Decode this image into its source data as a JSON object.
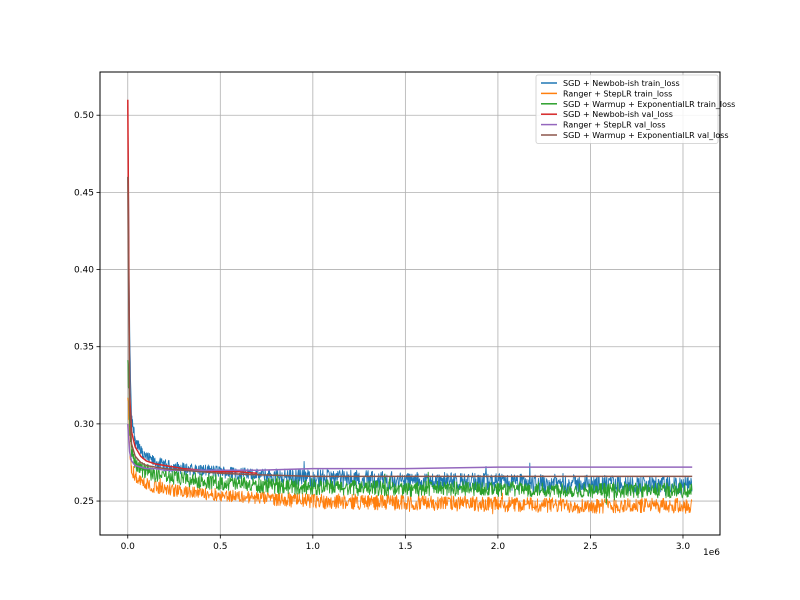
{
  "chart_data": {
    "type": "line",
    "title": "",
    "xlabel": "",
    "ylabel": "",
    "x_offset_label": "1e6",
    "xlim": [
      -150000,
      3200000
    ],
    "ylim": [
      0.228,
      0.528
    ],
    "xticks": [
      0,
      500000,
      1000000,
      1500000,
      2000000,
      2500000,
      3000000
    ],
    "xtick_labels": [
      "0.0",
      "0.5",
      "1.0",
      "1.5",
      "2.0",
      "2.5",
      "3.0"
    ],
    "yticks": [
      0.25,
      0.3,
      0.35,
      0.4,
      0.45,
      0.5
    ],
    "ytick_labels": [
      "0.25",
      "0.30",
      "0.35",
      "0.40",
      "0.45",
      "0.50"
    ],
    "grid": true,
    "legend_position": "top-right",
    "series": [
      {
        "name": "SGD + Newbob-ish train_loss",
        "color": "#1f77b4",
        "noisy": true,
        "x": [
          0,
          10000,
          20000,
          40000,
          70000,
          100000,
          150000,
          200000,
          300000,
          400000,
          500000,
          600000,
          700000,
          1000000,
          1500000,
          2000000,
          2500000,
          3050000
        ],
        "y": [
          0.51,
          0.36,
          0.305,
          0.29,
          0.282,
          0.278,
          0.275,
          0.273,
          0.271,
          0.27,
          0.269,
          0.268,
          0.267,
          0.265,
          0.263,
          0.262,
          0.261,
          0.26
        ],
        "band": [
          0.01,
          0.006,
          0.005,
          0.004,
          0.004,
          0.004,
          0.004,
          0.004,
          0.004,
          0.004,
          0.004,
          0.004,
          0.004,
          0.006,
          0.006,
          0.006,
          0.006,
          0.006
        ]
      },
      {
        "name": "Ranger + StepLR train_loss",
        "color": "#ff7f0e",
        "noisy": true,
        "x": [
          0,
          10000,
          20000,
          40000,
          70000,
          100000,
          150000,
          200000,
          300000,
          400000,
          500000,
          600000,
          700000,
          1000000,
          1500000,
          2000000,
          2500000,
          3050000
        ],
        "y": [
          0.32,
          0.285,
          0.272,
          0.266,
          0.263,
          0.261,
          0.259,
          0.258,
          0.256,
          0.255,
          0.254,
          0.253,
          0.252,
          0.25,
          0.249,
          0.248,
          0.247,
          0.247
        ],
        "band": [
          0.008,
          0.006,
          0.005,
          0.004,
          0.004,
          0.004,
          0.004,
          0.004,
          0.004,
          0.004,
          0.004,
          0.004,
          0.004,
          0.005,
          0.005,
          0.005,
          0.005,
          0.005
        ]
      },
      {
        "name": "SGD + Warmup + ExponentialLR train_loss",
        "color": "#2ca02c",
        "noisy": true,
        "x": [
          0,
          10000,
          20000,
          40000,
          70000,
          100000,
          150000,
          200000,
          300000,
          400000,
          500000,
          600000,
          700000,
          1000000,
          1500000,
          2000000,
          2500000,
          3050000
        ],
        "y": [
          0.34,
          0.3,
          0.283,
          0.275,
          0.271,
          0.269,
          0.267,
          0.266,
          0.264,
          0.263,
          0.262,
          0.261,
          0.26,
          0.259,
          0.258,
          0.258,
          0.257,
          0.257
        ],
        "band": [
          0.01,
          0.006,
          0.005,
          0.005,
          0.005,
          0.005,
          0.005,
          0.005,
          0.005,
          0.005,
          0.005,
          0.005,
          0.005,
          0.005,
          0.005,
          0.005,
          0.005,
          0.005
        ]
      },
      {
        "name": "SGD + Newbob-ish val_loss",
        "color": "#d62728",
        "noisy": false,
        "x": [
          0,
          10000,
          20000,
          40000,
          70000,
          100000,
          150000,
          200000,
          300000,
          400000,
          500000,
          600000,
          700000
        ],
        "y": [
          0.51,
          0.32,
          0.295,
          0.285,
          0.279,
          0.276,
          0.274,
          0.273,
          0.271,
          0.27,
          0.269,
          0.269,
          0.268
        ]
      },
      {
        "name": "Ranger + StepLR val_loss",
        "color": "#9467bd",
        "noisy": false,
        "x": [
          0,
          10000,
          20000,
          40000,
          70000,
          100000,
          150000,
          200000,
          300000,
          400000,
          500000,
          700000,
          1000000,
          1500000,
          2000000,
          2500000,
          3050000
        ],
        "y": [
          0.3,
          0.282,
          0.276,
          0.273,
          0.272,
          0.271,
          0.271,
          0.27,
          0.27,
          0.27,
          0.27,
          0.27,
          0.271,
          0.271,
          0.272,
          0.272,
          0.272
        ]
      },
      {
        "name": "SGD + Warmup + ExponentialLR val_loss",
        "color": "#8c564b",
        "noisy": false,
        "x": [
          0,
          10000,
          20000,
          40000,
          70000,
          100000,
          150000,
          200000,
          300000,
          400000,
          500000,
          700000,
          1000000,
          1500000,
          2000000,
          2500000,
          3050000
        ],
        "y": [
          0.46,
          0.31,
          0.287,
          0.279,
          0.275,
          0.273,
          0.272,
          0.271,
          0.27,
          0.269,
          0.268,
          0.267,
          0.266,
          0.266,
          0.266,
          0.266,
          0.266
        ]
      }
    ]
  }
}
